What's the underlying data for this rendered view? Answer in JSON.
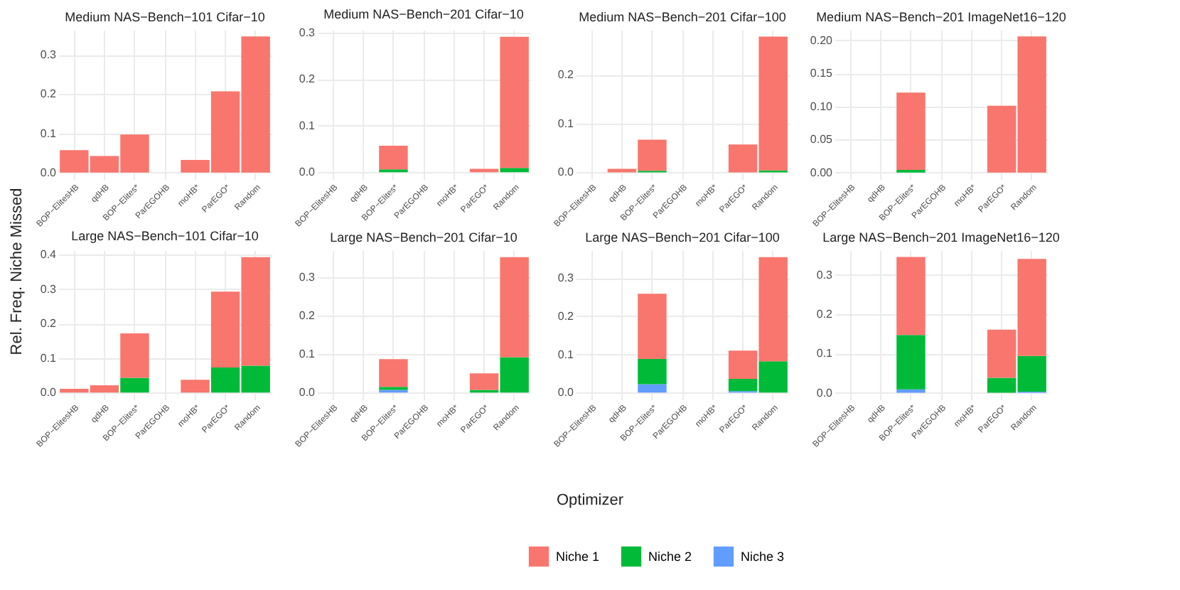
{
  "chart_data": [
    {
      "type": "bar",
      "title": "Medium NAS−Bench−101 Cifar−10",
      "ylabel": "Rel. Freq. Niche Missed",
      "grid": true,
      "stacked": true,
      "categories": [
        "BOP−ElitesHB",
        "qdHB",
        "BOP−Elites*",
        "ParEGOHB",
        "moHB*",
        "ParEGO*",
        "Random"
      ],
      "ylim": [
        -0.017,
        0.364
      ],
      "yticks": [
        {
          "value": 0,
          "label": "0.0"
        },
        {
          "value": 0.1,
          "label": "0.1"
        },
        {
          "value": 0.2,
          "label": "0.2"
        },
        {
          "value": 0.3,
          "label": "0.3"
        }
      ],
      "series": [
        {
          "color": "#619cff",
          "values": [
            null,
            null,
            null,
            null,
            null,
            null,
            null
          ]
        },
        {
          "color": "#00ba38",
          "values": [
            null,
            null,
            null,
            null,
            null,
            null,
            null
          ]
        },
        {
          "color": "#f8766d",
          "values": [
            0.057,
            0.042,
            0.097,
            null,
            0.032,
            0.207,
            0.347
          ]
        }
      ]
    },
    {
      "type": "bar",
      "title": "Medium NAS−Bench−201 Cifar−10",
      "grid": true,
      "stacked": true,
      "categories": [
        "BOP−ElitesHB",
        "qdHB",
        "BOP−Elites*",
        "ParEGOHB",
        "moHB*",
        "ParEGO*",
        "Random"
      ],
      "ylim": [
        -0.015,
        0.306
      ],
      "yticks": [
        {
          "value": 0,
          "label": "0.0"
        },
        {
          "value": 0.1,
          "label": "0.1"
        },
        {
          "value": 0.2,
          "label": "0.2"
        },
        {
          "value": 0.3,
          "label": "0.3"
        }
      ],
      "series": [
        {
          "color": "#619cff",
          "values": [
            null,
            null,
            null,
            null,
            null,
            null,
            null
          ]
        },
        {
          "color": "#00ba38",
          "values": [
            null,
            null,
            0.006,
            null,
            null,
            null,
            0.009
          ]
        },
        {
          "color": "#f8766d",
          "values": [
            null,
            null,
            0.051,
            null,
            null,
            0.007,
            0.282
          ]
        }
      ]
    },
    {
      "type": "bar",
      "title": "Medium NAS−Bench−201 Cifar−100",
      "grid": true,
      "stacked": true,
      "categories": [
        "BOP−ElitesHB",
        "qdHB",
        "BOP−Elites*",
        "ParEGOHB",
        "moHB*",
        "ParEGO*",
        "Random"
      ],
      "ylim": [
        -0.014,
        0.292
      ],
      "yticks": [
        {
          "value": 0,
          "label": "0.0"
        },
        {
          "value": 0.1,
          "label": "0.1"
        },
        {
          "value": 0.2,
          "label": "0.2"
        }
      ],
      "series": [
        {
          "color": "#619cff",
          "values": [
            null,
            null,
            null,
            null,
            null,
            null,
            null
          ]
        },
        {
          "color": "#00ba38",
          "values": [
            null,
            null,
            0.003,
            null,
            null,
            null,
            0.004
          ]
        },
        {
          "color": "#f8766d",
          "values": [
            null,
            0.007,
            0.064,
            null,
            null,
            0.057,
            0.274
          ]
        }
      ]
    },
    {
      "type": "bar",
      "title": "Medium NAS−Bench−201 ImageNet16−120",
      "grid": true,
      "stacked": true,
      "categories": [
        "BOP−ElitesHB",
        "qdHB",
        "BOP−Elites*",
        "ParEGOHB",
        "moHB*",
        "ParEGO*",
        "Random"
      ],
      "ylim": [
        -0.01,
        0.216
      ],
      "yticks": [
        {
          "value": 0,
          "label": "0.00"
        },
        {
          "value": 0.05,
          "label": "0.05"
        },
        {
          "value": 0.1,
          "label": "0.10"
        },
        {
          "value": 0.15,
          "label": "0.15"
        },
        {
          "value": 0.2,
          "label": "0.20"
        }
      ],
      "series": [
        {
          "color": "#619cff",
          "values": [
            null,
            null,
            null,
            null,
            null,
            null,
            null
          ]
        },
        {
          "color": "#00ba38",
          "values": [
            null,
            null,
            0.004,
            null,
            null,
            null,
            null
          ]
        },
        {
          "color": "#f8766d",
          "values": [
            null,
            null,
            0.117,
            null,
            null,
            0.101,
            0.206
          ]
        }
      ]
    },
    {
      "type": "bar",
      "title": "Large NAS−Bench−101 Cifar−10",
      "grid": true,
      "stacked": true,
      "categories": [
        "BOP−ElitesHB",
        "qdHB",
        "BOP−Elites*",
        "ParEGOHB",
        "moHB*",
        "ParEGO*",
        "Random"
      ],
      "ylim": [
        -0.02,
        0.413
      ],
      "yticks": [
        {
          "value": 0,
          "label": "0.0"
        },
        {
          "value": 0.1,
          "label": "0.1"
        },
        {
          "value": 0.2,
          "label": "0.2"
        },
        {
          "value": 0.3,
          "label": "0.3"
        },
        {
          "value": 0.4,
          "label": "0.4"
        }
      ],
      "series": [
        {
          "color": "#619cff",
          "values": [
            null,
            null,
            null,
            null,
            null,
            null,
            null
          ]
        },
        {
          "color": "#00ba38",
          "values": [
            null,
            null,
            0.043,
            null,
            null,
            0.073,
            0.078
          ]
        },
        {
          "color": "#f8766d",
          "values": [
            0.011,
            0.021,
            0.129,
            null,
            0.037,
            0.22,
            0.315
          ]
        }
      ]
    },
    {
      "type": "bar",
      "title": "Large NAS−Bench−201 Cifar−10",
      "grid": true,
      "stacked": true,
      "categories": [
        "BOP−ElitesHB",
        "qdHB",
        "BOP−Elites*",
        "ParEGOHB",
        "moHB*",
        "ParEGO*",
        "Random"
      ],
      "ylim": [
        -0.018,
        0.37
      ],
      "yticks": [
        {
          "value": 0,
          "label": "0.0"
        },
        {
          "value": 0.1,
          "label": "0.1"
        },
        {
          "value": 0.2,
          "label": "0.2"
        },
        {
          "value": 0.3,
          "label": "0.3"
        }
      ],
      "series": [
        {
          "color": "#619cff",
          "values": [
            null,
            null,
            0.007,
            null,
            null,
            null,
            null
          ]
        },
        {
          "color": "#00ba38",
          "values": [
            null,
            null,
            0.008,
            null,
            null,
            0.007,
            0.092
          ]
        },
        {
          "color": "#f8766d",
          "values": [
            null,
            null,
            0.072,
            null,
            null,
            0.043,
            0.26
          ]
        }
      ]
    },
    {
      "type": "bar",
      "title": "Large NAS−Bench−201 Cifar−100",
      "xlabel": "Optimizer",
      "grid": true,
      "stacked": true,
      "categories": [
        "BOP−ElitesHB",
        "qdHB",
        "BOP−Elites*",
        "ParEGOHB",
        "moHB*",
        "ParEGO*",
        "Random"
      ],
      "ylim": [
        -0.018,
        0.373
      ],
      "yticks": [
        {
          "value": 0,
          "label": "0.0"
        },
        {
          "value": 0.1,
          "label": "0.1"
        },
        {
          "value": 0.2,
          "label": "0.2"
        },
        {
          "value": 0.3,
          "label": "0.3"
        }
      ],
      "series": [
        {
          "color": "#619cff",
          "values": [
            null,
            null,
            0.022,
            null,
            null,
            0.004,
            null
          ]
        },
        {
          "color": "#00ba38",
          "values": [
            null,
            null,
            0.066,
            null,
            null,
            0.032,
            0.082
          ]
        },
        {
          "color": "#f8766d",
          "values": [
            null,
            null,
            0.171,
            null,
            null,
            0.074,
            0.273
          ]
        }
      ]
    },
    {
      "type": "bar",
      "title": "Large NAS−Bench−201 ImageNet16−120",
      "legend": "bottom",
      "grid": true,
      "stacked": true,
      "categories": [
        "BOP−ElitesHB",
        "qdHB",
        "BOP−Elites*",
        "ParEGOHB",
        "moHB*",
        "ParEGO*",
        "Random"
      ],
      "ylim": [
        -0.017,
        0.363
      ],
      "yticks": [
        {
          "value": 0,
          "label": "0.0"
        },
        {
          "value": 0.1,
          "label": "0.1"
        },
        {
          "value": 0.2,
          "label": "0.2"
        },
        {
          "value": 0.3,
          "label": "0.3"
        }
      ],
      "series": [
        {
          "name": "Niche 3",
          "color": "#619cff",
          "values": [
            null,
            null,
            0.009,
            null,
            null,
            null,
            0.003
          ]
        },
        {
          "name": "Niche 2",
          "color": "#00ba38",
          "values": [
            null,
            null,
            0.138,
            null,
            null,
            0.038,
            0.091
          ]
        },
        {
          "name": "Niche 1",
          "color": "#f8766d",
          "values": [
            null,
            null,
            0.199,
            null,
            null,
            0.123,
            0.247
          ]
        }
      ]
    }
  ]
}
